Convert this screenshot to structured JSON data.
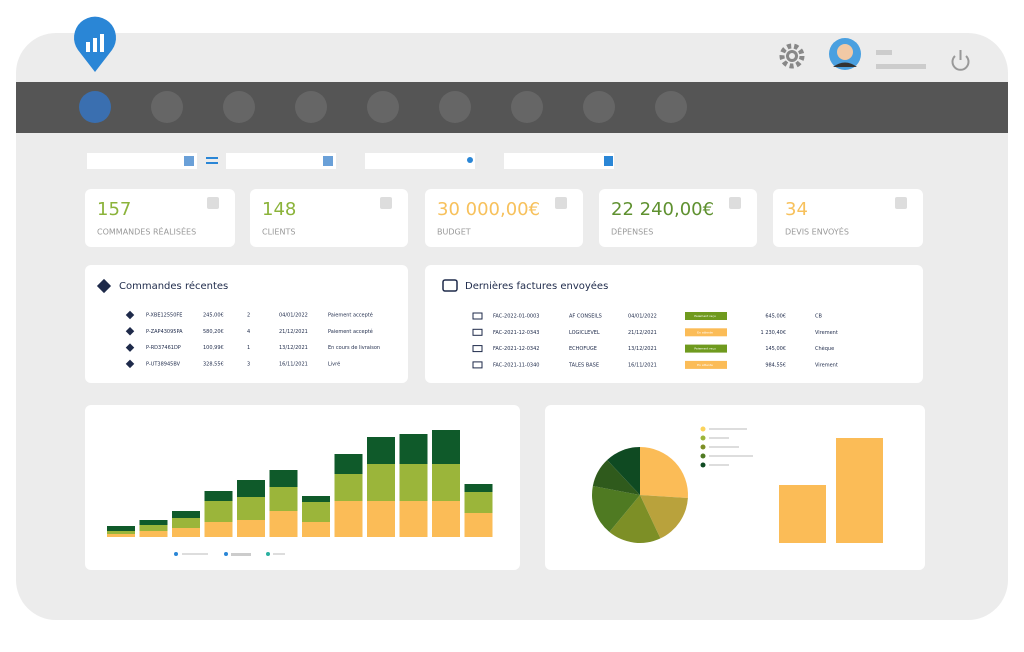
{
  "kpis": [
    {
      "value": "157",
      "label": "COMMANDES RÉALISÉES",
      "color": "#8bb33a"
    },
    {
      "value": "148",
      "label": "CLIENTS",
      "color": "#8bb33a"
    },
    {
      "value": "30 000,00€",
      "label": "BUDGET",
      "color": "#f7c15c"
    },
    {
      "value": "22 240,00€",
      "label": "DÉPENSES",
      "color": "#5f9130"
    },
    {
      "value": "34",
      "label": "DEVIS ENVOYÉS",
      "color": "#f7c15c"
    }
  ],
  "orders": {
    "title": "Commandes récentes",
    "rows": [
      [
        "P-XBE12550FE",
        "245,00€",
        "2",
        "04/01/2022",
        "Paiement accepté"
      ],
      [
        "P-ZAP43095PA",
        "580,20€",
        "4",
        "21/12/2021",
        "Paiement accepté"
      ],
      [
        "P-RD37461DP",
        "100,99€",
        "1",
        "13/12/2021",
        "En cours de livraison"
      ],
      [
        "P-UT38945BV",
        "328,55€",
        "3",
        "16/11/2021",
        "Livré"
      ]
    ]
  },
  "invoices": {
    "title": "Dernières factures envoyées",
    "rows": [
      [
        "FAC-2022-01-0003",
        "AF CONSEILS",
        "04/01/2022",
        "Paiement reçu",
        "645,00€",
        "CB"
      ],
      [
        "FAC-2021-12-0343",
        "LOGICLEVEL",
        "21/12/2021",
        "En attente",
        "1 230,40€",
        "Virement"
      ],
      [
        "FAC-2021-12-0342",
        "ECHOFUGE",
        "13/12/2021",
        "Paiement reçu",
        "145,00€",
        "Chèque"
      ],
      [
        "FAC-2021-11-0340",
        "TALES BASE",
        "16/11/2021",
        "En attente",
        "984,55€",
        "Virement"
      ]
    ],
    "badge_colors": [
      "#6f9a1e",
      "#fbbc57",
      "#6f9a1e",
      "#fbbc57"
    ]
  },
  "stacked_bars": {
    "colors": [
      "#fbbc57",
      "#9bb53a",
      "#0f5a2a"
    ],
    "values": [
      [
        3,
        3,
        5
      ],
      [
        6,
        6,
        5
      ],
      [
        9,
        10,
        7
      ],
      [
        15,
        21,
        10
      ],
      [
        17,
        23,
        17
      ],
      [
        26,
        24,
        17
      ],
      [
        15,
        20,
        6
      ],
      [
        36,
        27,
        20
      ],
      [
        36,
        37,
        27
      ],
      [
        36,
        37,
        30
      ],
      [
        36,
        37,
        34
      ],
      [
        24,
        21,
        8
      ]
    ]
  },
  "pie": {
    "values": [
      26,
      17,
      18,
      17,
      10,
      12
    ],
    "colors": [
      "#fbbc57",
      "#b9a23c",
      "#7d8f26",
      "#4f7a22",
      "#2f5a1c",
      "#0f4a22"
    ]
  },
  "side_bars": {
    "values": [
      58,
      105
    ],
    "color": "#fbbc57"
  }
}
